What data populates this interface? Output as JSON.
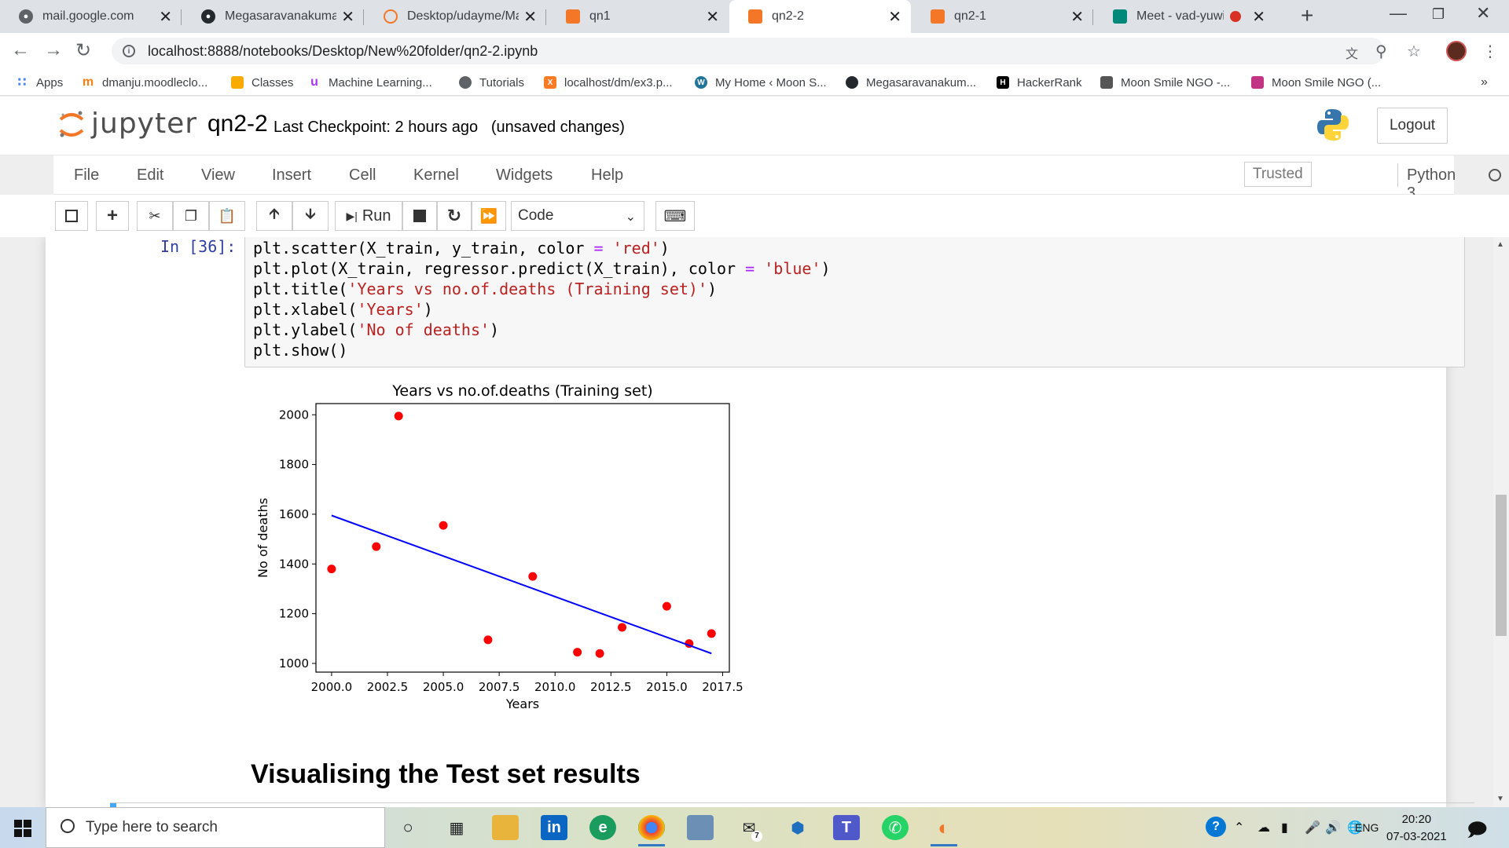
{
  "browser": {
    "tabs": [
      {
        "title": "mail.google.com",
        "icon": "globe-icon",
        "color": "#5f6368",
        "active": false
      },
      {
        "title": "Megasaravanakumar/C",
        "icon": "github-icon",
        "color": "#24292e",
        "active": false
      },
      {
        "title": "Desktop/udayme/Mac",
        "icon": "jupyter-icon",
        "color": "#f37726",
        "active": false
      },
      {
        "title": "qn1",
        "icon": "notebook-icon",
        "color": "#f37726",
        "active": false
      },
      {
        "title": "qn2-2",
        "icon": "notebook-icon",
        "color": "#f37726",
        "active": true
      },
      {
        "title": "qn2-1",
        "icon": "notebook-icon",
        "color": "#f37726",
        "active": false
      },
      {
        "title": "Meet - vad-yuwi-h",
        "icon": "meet-icon",
        "color": "#00897b",
        "active": false
      }
    ],
    "url": "localhost:8888/notebooks/Desktop/New%20folder/qn2-2.ipynb",
    "bookmarks": [
      {
        "label": "Apps",
        "icon": "apps-grid-icon",
        "color": "#4285f4"
      },
      {
        "label": "dmanju.moodleclo...",
        "icon": "moodle-icon",
        "color": "#f98012"
      },
      {
        "label": "Classes",
        "icon": "classroom-icon",
        "color": "#f9ab00"
      },
      {
        "label": "Machine Learning...",
        "icon": "udemy-icon",
        "color": "#a435f0"
      },
      {
        "label": "Tutorials",
        "icon": "globe-icon",
        "color": "#5f6368"
      },
      {
        "label": "localhost/dm/ex3.p...",
        "icon": "xampp-icon",
        "color": "#fb7a24"
      },
      {
        "label": "My Home ‹ Moon S...",
        "icon": "wordpress-icon",
        "color": "#21759b"
      },
      {
        "label": "Megasaravanakum...",
        "icon": "github-icon",
        "color": "#24292e"
      },
      {
        "label": "HackerRank",
        "icon": "hackerrank-icon",
        "color": "#000000"
      },
      {
        "label": "Moon Smile NGO -...",
        "icon": "page-icon",
        "color": "#555555"
      },
      {
        "label": "Moon Smile NGO (...",
        "icon": "instagram-icon",
        "color": "#c13584"
      }
    ]
  },
  "jupyter": {
    "logo_text": "jupyter",
    "notebook_name": "qn2-2",
    "checkpoint": "Last Checkpoint: 2 hours ago",
    "unsaved": "(unsaved changes)",
    "logout_label": "Logout",
    "menu": [
      "File",
      "Edit",
      "View",
      "Insert",
      "Cell",
      "Kernel",
      "Widgets",
      "Help"
    ],
    "trusted_label": "Trusted",
    "kernel_label": "Python 3",
    "toolbar": {
      "run_label": "Run",
      "cell_type": "Code"
    }
  },
  "cell": {
    "prompt": "In [36]:",
    "code": [
      [
        {
          "t": "plt.scatter(X_train, y_train, color "
        },
        {
          "t": "=",
          "c": "op"
        },
        {
          "t": " "
        },
        {
          "t": "'red'",
          "c": "str"
        },
        {
          "t": ")"
        }
      ],
      [
        {
          "t": "plt.plot(X_train, regressor.predict(X_train), color "
        },
        {
          "t": "=",
          "c": "op"
        },
        {
          "t": " "
        },
        {
          "t": "'blue'",
          "c": "str"
        },
        {
          "t": ")"
        }
      ],
      [
        {
          "t": "plt.title("
        },
        {
          "t": "'Years vs no.of.deaths (Training set)'",
          "c": "str"
        },
        {
          "t": ")"
        }
      ],
      [
        {
          "t": "plt.xlabel("
        },
        {
          "t": "'Years'",
          "c": "str"
        },
        {
          "t": ")"
        }
      ],
      [
        {
          "t": "plt.ylabel("
        },
        {
          "t": "'No of deaths'",
          "c": "str"
        },
        {
          "t": ")"
        }
      ],
      [
        {
          "t": "plt.show()"
        }
      ]
    ]
  },
  "chart_data": {
    "type": "scatter",
    "title": "Years vs no.of.deaths (Training set)",
    "xlabel": "Years",
    "ylabel": "No of deaths",
    "xlim": [
      1999.3,
      2017.8
    ],
    "ylim": [
      965,
      2045
    ],
    "xticks": [
      "2000.0",
      "2002.5",
      "2005.0",
      "2007.5",
      "2010.0",
      "2012.5",
      "2015.0",
      "2017.5"
    ],
    "yticks": [
      "1000",
      "1200",
      "1400",
      "1600",
      "1800",
      "2000"
    ],
    "series": [
      {
        "kind": "scatter",
        "color": "#ff0000",
        "points": [
          [
            2000,
            1380
          ],
          [
            2002,
            1470
          ],
          [
            2003,
            1995
          ],
          [
            2005,
            1555
          ],
          [
            2007,
            1095
          ],
          [
            2009,
            1350
          ],
          [
            2011,
            1045
          ],
          [
            2012,
            1040
          ],
          [
            2013,
            1145
          ],
          [
            2015,
            1230
          ],
          [
            2016,
            1080
          ],
          [
            2017,
            1120
          ]
        ]
      },
      {
        "kind": "line",
        "color": "#0000ff",
        "points": [
          [
            2000,
            1595
          ],
          [
            2017,
            1040
          ]
        ]
      }
    ]
  },
  "markdown": {
    "heading": "Visualising the Test set results"
  },
  "taskbar": {
    "search_placeholder": "Type here to search",
    "language": "ENG",
    "time": "20:20",
    "date": "07-03-2021",
    "mail_badge": "7"
  }
}
